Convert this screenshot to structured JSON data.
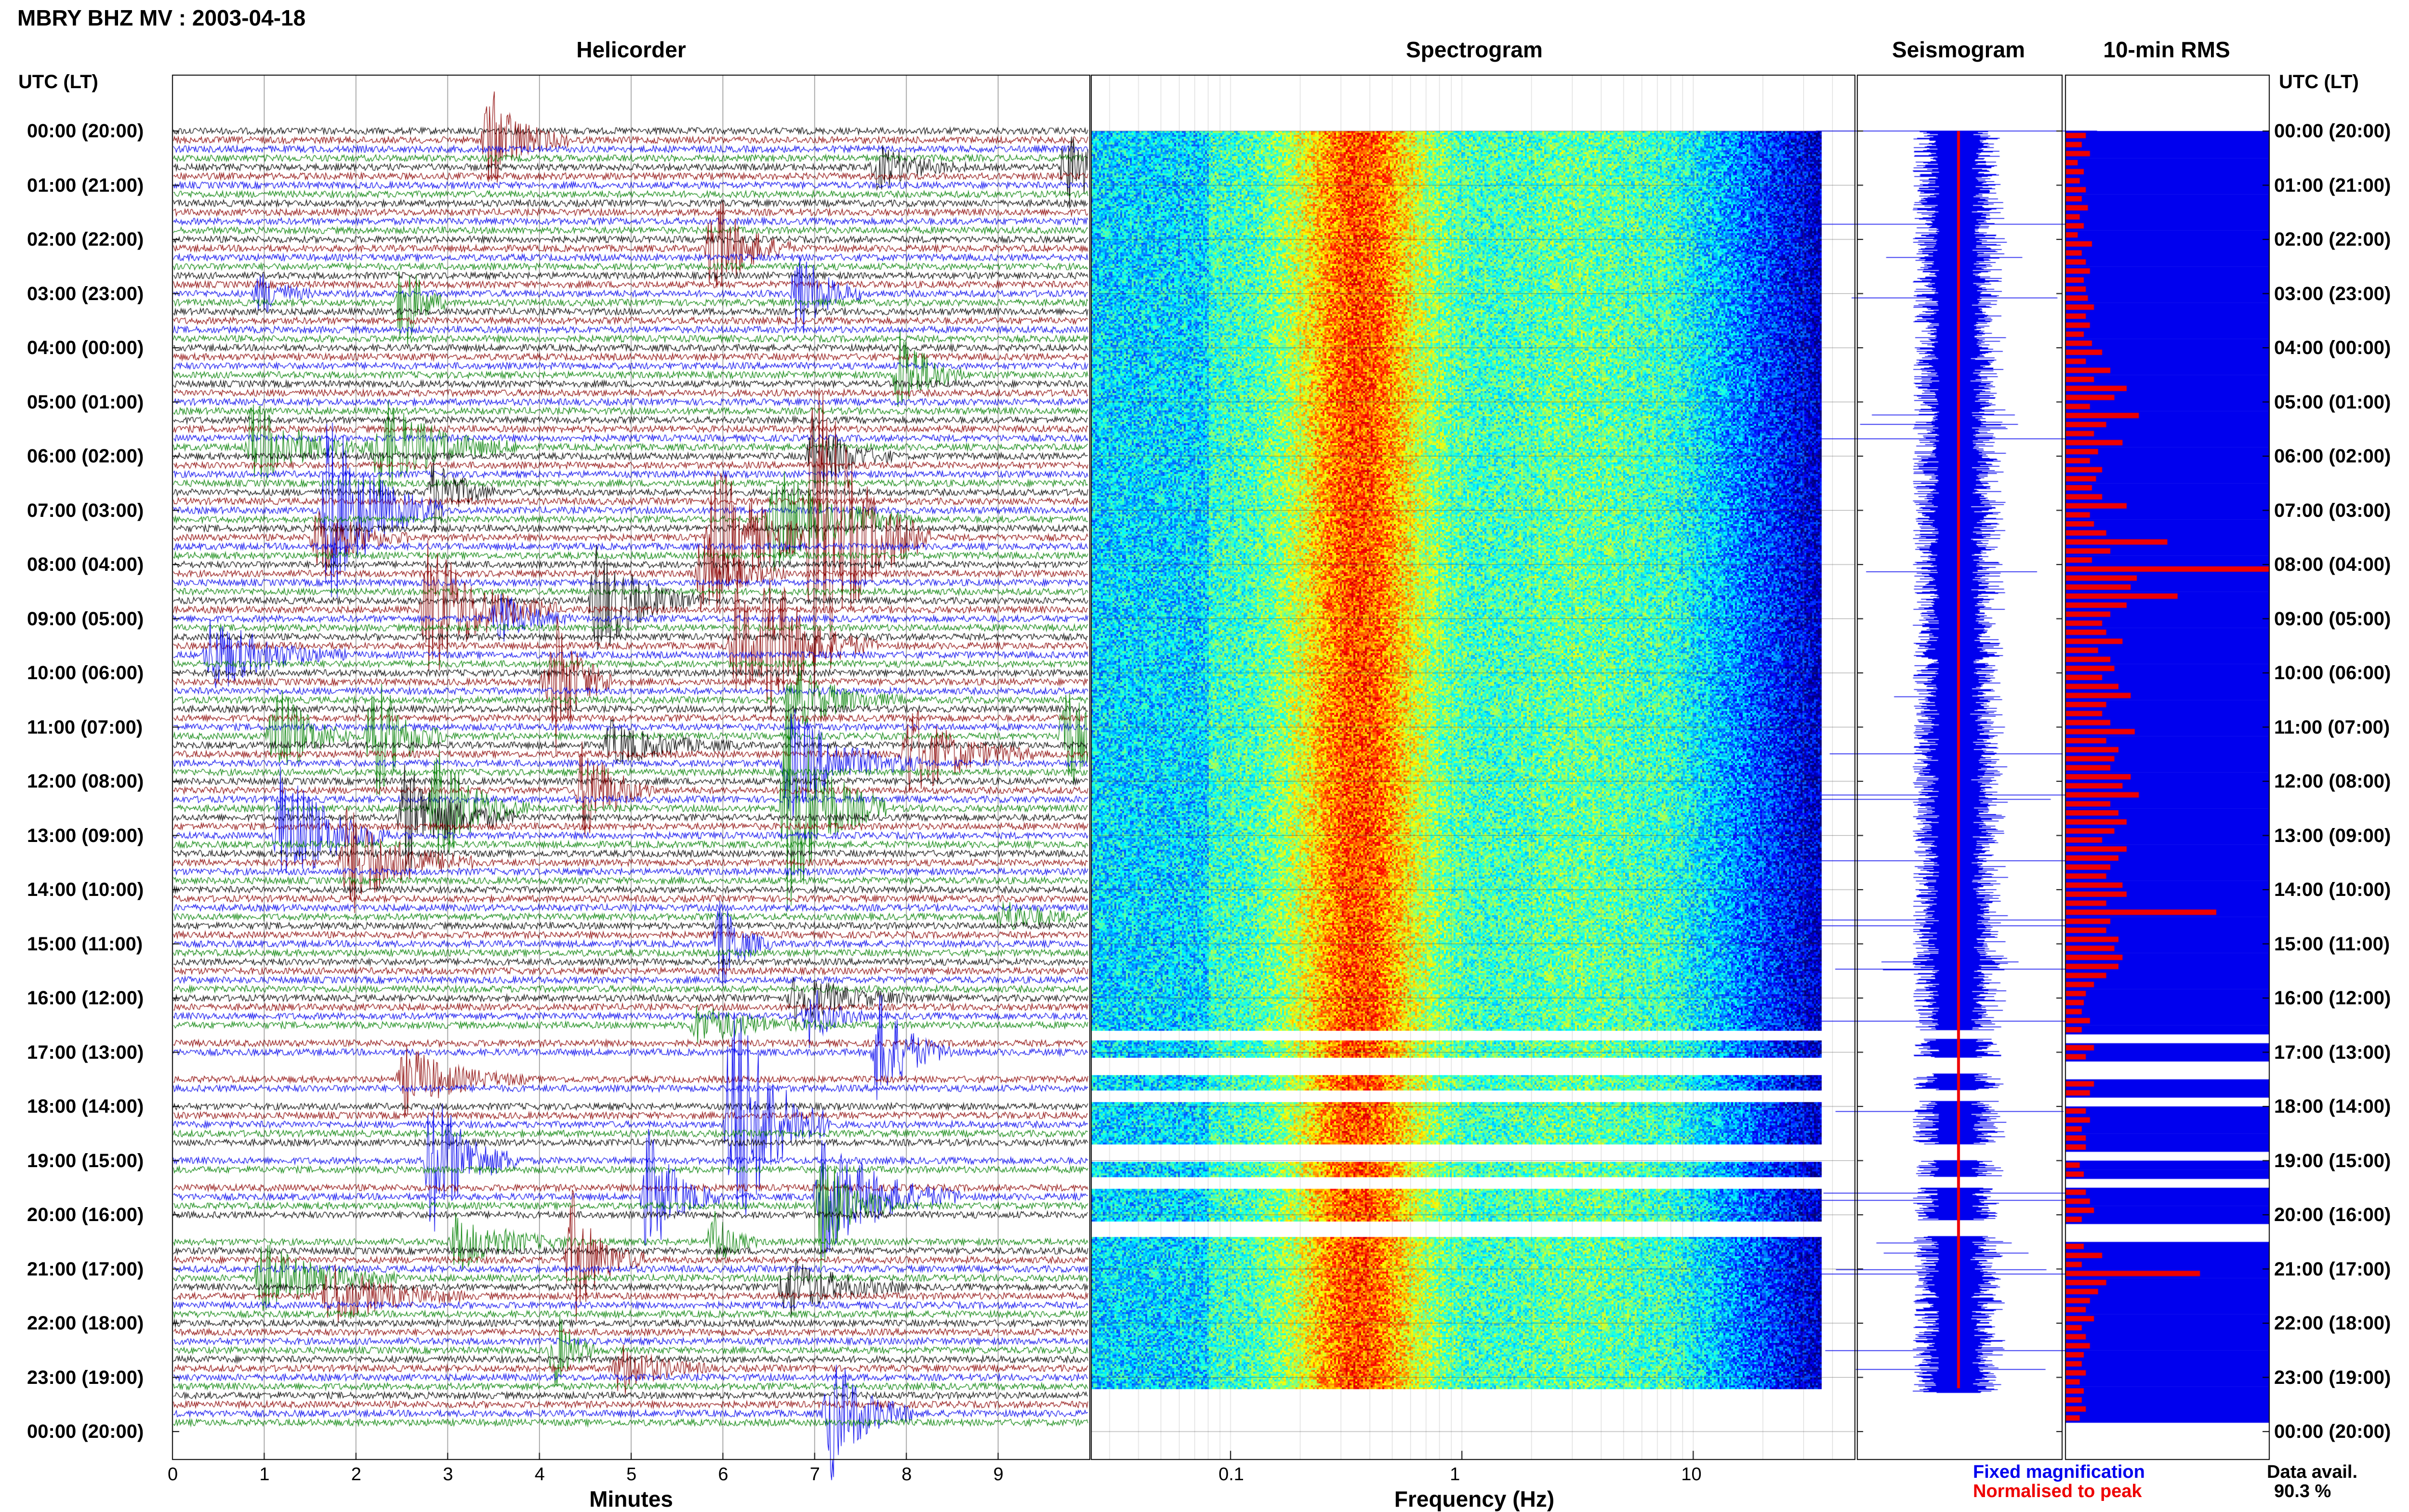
{
  "page": {
    "title": "MBRY BHZ MV : 2003-04-18",
    "left_axis_header": "UTC (LT)",
    "right_axis_header": "UTC (LT)"
  },
  "panels": {
    "helicorder": "Helicorder",
    "spectrogram": "Spectrogram",
    "seismogram": "Seismogram",
    "rms": "10-min RMS"
  },
  "x_labels": {
    "helicorder": "Minutes",
    "spectrogram": "Frequency (Hz)"
  },
  "legend": {
    "fixed": "Fixed magnification",
    "normalised": "Normalised to peak",
    "fixed_color": "#0000ee",
    "normalised_color": "#ee0000"
  },
  "data_availability": {
    "label": "Data avail.",
    "value": "90.3 %"
  },
  "chart_data": {
    "type": "heatmap",
    "time_labels": [
      "00:00 (20:00)",
      "01:00 (21:00)",
      "02:00 (22:00)",
      "03:00 (23:00)",
      "04:00 (00:00)",
      "05:00 (01:00)",
      "06:00 (02:00)",
      "07:00 (03:00)",
      "08:00 (04:00)",
      "09:00 (05:00)",
      "10:00 (06:00)",
      "11:00 (07:00)",
      "12:00 (08:00)",
      "13:00 (09:00)",
      "14:00 (10:00)",
      "15:00 (11:00)",
      "16:00 (12:00)",
      "17:00 (13:00)",
      "18:00 (14:00)",
      "19:00 (15:00)",
      "20:00 (16:00)",
      "21:00 (17:00)",
      "22:00 (18:00)",
      "23:00 (19:00)",
      "00:00 (20:00)"
    ],
    "helicorder_x_ticks": [
      "0",
      "1",
      "2",
      "3",
      "4",
      "5",
      "6",
      "7",
      "8",
      "9"
    ],
    "helicorder_xlim": [
      0,
      10
    ],
    "helicorder_trace_colors": [
      "#000000",
      "#8b0000",
      "#0000ee",
      "#008000"
    ],
    "spectrogram_x_ticks": [
      "0.1",
      "1",
      "10"
    ],
    "spectrogram_xlim": [
      0.025,
      50
    ],
    "spectrogram_log_x": true,
    "data_gaps_utc_hours": [
      [
        16.6,
        16.75
      ],
      [
        17.1,
        17.4
      ],
      [
        17.7,
        17.9
      ],
      [
        18.7,
        19.0
      ],
      [
        19.3,
        19.5
      ],
      [
        20.1,
        20.4
      ]
    ],
    "rms_red_normalised": [
      0.1,
      0.08,
      0.12,
      0.06,
      0.09,
      0.07,
      0.1,
      0.08,
      0.11,
      0.07,
      0.09,
      0.06,
      0.13,
      0.08,
      0.1,
      0.12,
      0.09,
      0.1,
      0.11,
      0.14,
      0.1,
      0.12,
      0.09,
      0.13,
      0.18,
      0.1,
      0.22,
      0.14,
      0.3,
      0.24,
      0.12,
      0.36,
      0.2,
      0.14,
      0.28,
      0.16,
      0.12,
      0.18,
      0.15,
      0.13,
      0.18,
      0.3,
      0.12,
      0.14,
      0.2,
      0.5,
      0.22,
      0.13,
      1.0,
      0.35,
      0.32,
      0.55,
      0.3,
      0.22,
      0.18,
      0.2,
      0.28,
      0.16,
      0.22,
      0.24,
      0.18,
      0.26,
      0.32,
      0.2,
      0.18,
      0.22,
      0.34,
      0.2,
      0.26,
      0.24,
      0.22,
      0.32,
      0.28,
      0.36,
      0.22,
      0.26,
      0.3,
      0.24,
      0.18,
      0.3,
      0.26,
      0.22,
      0.2,
      0.28,
      0.3,
      0.2,
      0.74,
      0.22,
      0.2,
      0.26,
      0.24,
      0.28,
      0.26,
      0.2,
      0.14,
      0.1,
      0.09,
      0.08,
      0.12,
      0.08,
      0.1,
      0.14,
      0.1,
      0.12,
      0.08,
      0.14,
      0.12,
      0.18,
      0.1,
      0.12,
      0.08,
      0.1,
      0.1,
      0.08,
      0.07,
      0.09,
      0.08,
      0.1,
      0.12,
      0.14,
      0.08,
      0.1,
      0.08,
      0.09,
      0.18,
      0.08,
      0.66,
      0.2,
      0.16,
      0.12,
      0.1,
      0.14,
      0.08,
      0.1,
      0.12,
      0.09,
      0.08,
      0.1,
      0.07,
      0.09,
      0.08,
      0.1,
      0.07,
      0.09
    ]
  }
}
